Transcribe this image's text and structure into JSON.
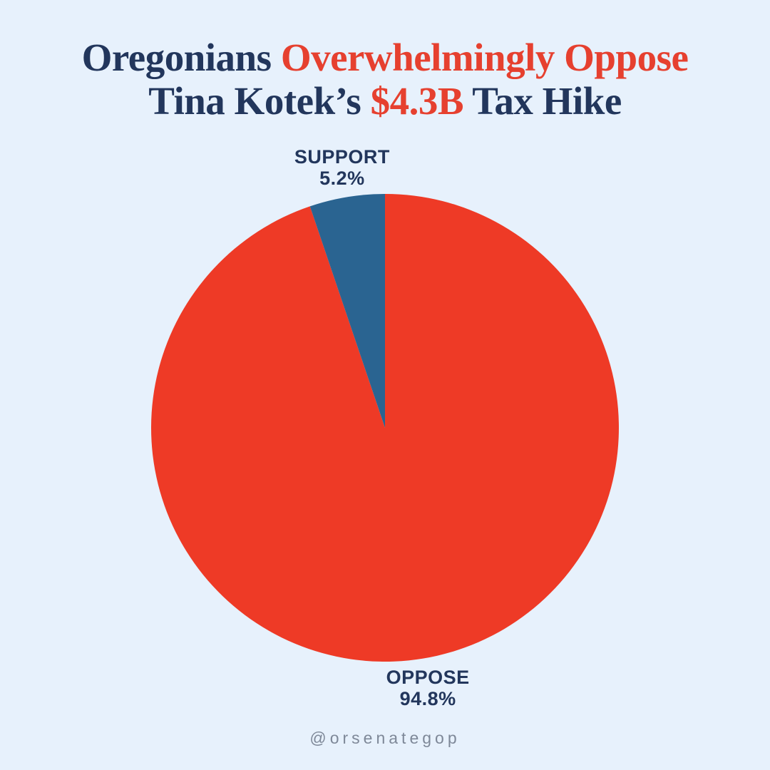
{
  "colors": {
    "background": "#e7f1fc",
    "navy": "#22365c",
    "title_red": "#e6402f",
    "oppose_red": "#ee3a26",
    "support_blue": "#2a6491",
    "footer_gray": "#7e8898"
  },
  "title": {
    "line1_navy": "Oregonians ",
    "line1_red": "Overwhelmingly Oppose",
    "line2_navy_a": "Tina Kotek’s ",
    "line2_red": "$4.3B",
    "line2_navy_b": " Tax Hike"
  },
  "chart_data": {
    "type": "pie",
    "title": "Oregonians Overwhelmingly Oppose Tina Kotek’s $4.3B Tax Hike",
    "start_angle_deg": 0,
    "direction": "clockwise",
    "legend": "none",
    "label_placement": "outside-mid-angle",
    "slices": [
      {
        "label": "OPPOSE",
        "value": 94.8,
        "display": "94.8%",
        "color_key": "oppose_red"
      },
      {
        "label": "SUPPORT",
        "value": 5.2,
        "display": "5.2%",
        "color_key": "support_blue"
      }
    ]
  },
  "footer": {
    "handle": "@orsenategop"
  }
}
